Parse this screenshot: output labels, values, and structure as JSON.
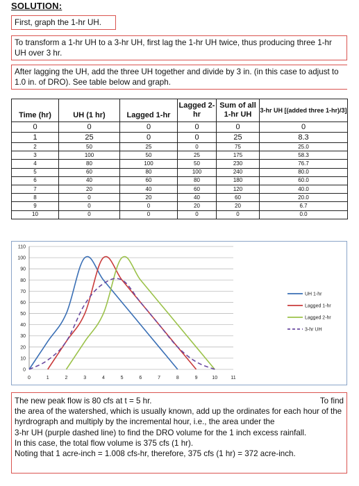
{
  "heading": "SOLUTION:",
  "step1": "First, graph the 1-hr UH.",
  "step2": "To transform a 1-hr UH to a 3-hr UH, first lag the 1-hr UH twice, thus producing three 1-hr UH over 3 hr.",
  "step3": "After lagging the UH, add the three UH together and divide by 3 in. (in this case to adjust to 1.0 in. of DRO). See table below and graph.",
  "table": {
    "headers": [
      "Time (hr)",
      "UH (1 hr)",
      "Lagged 1-hr",
      "Lagged 2-hr",
      "Sum of all 1-hr UH",
      "3-hr UH [(added three 1-hr)/3]"
    ],
    "rows": [
      [
        "0",
        "0",
        "0",
        "0",
        "0",
        "0"
      ],
      [
        "1",
        "25",
        "0",
        "0",
        "25",
        "8.3"
      ],
      [
        "2",
        "50",
        "25",
        "0",
        "75",
        "25.0"
      ],
      [
        "3",
        "100",
        "50",
        "25",
        "175",
        "58.3"
      ],
      [
        "4",
        "80",
        "100",
        "50",
        "230",
        "76.7"
      ],
      [
        "5",
        "60",
        "80",
        "100",
        "240",
        "80.0"
      ],
      [
        "6",
        "40",
        "60",
        "80",
        "180",
        "60.0"
      ],
      [
        "7",
        "20",
        "40",
        "60",
        "120",
        "40.0"
      ],
      [
        "8",
        "0",
        "20",
        "40",
        "60",
        "20.0"
      ],
      [
        "9",
        "0",
        "0",
        "20",
        "20",
        "6.7"
      ],
      [
        "10",
        "0",
        "0",
        "0",
        "0",
        "0.0"
      ]
    ]
  },
  "chart_data": {
    "type": "line",
    "title": "",
    "xlabel": "",
    "ylabel": "",
    "xlim": [
      0,
      11
    ],
    "ylim": [
      0,
      110
    ],
    "xticks": [
      "0",
      "1",
      "2",
      "3",
      "4",
      "5",
      "6",
      "7",
      "8",
      "9",
      "10",
      "11"
    ],
    "yticks": [
      "0",
      "10",
      "20",
      "30",
      "40",
      "50",
      "60",
      "70",
      "80",
      "90",
      "100",
      "110"
    ],
    "grid": true,
    "legend_position": "right",
    "series": [
      {
        "name": "UH 1-hr",
        "color": "#3a6fb5",
        "dash": false,
        "x": [
          0,
          1,
          2,
          3,
          4,
          5,
          6,
          7,
          8
        ],
        "y": [
          0,
          25,
          50,
          100,
          80,
          60,
          40,
          20,
          0
        ]
      },
      {
        "name": "Lagged 1-hr",
        "color": "#c93b3b",
        "dash": false,
        "x": [
          1,
          2,
          3,
          4,
          5,
          6,
          7,
          8,
          9
        ],
        "y": [
          0,
          25,
          50,
          100,
          80,
          60,
          40,
          20,
          0
        ]
      },
      {
        "name": "Lagged 2-hr",
        "color": "#9bc24a",
        "dash": false,
        "x": [
          2,
          3,
          4,
          5,
          6,
          7,
          8,
          9,
          10
        ],
        "y": [
          0,
          25,
          50,
          100,
          80,
          60,
          40,
          20,
          0
        ]
      },
      {
        "name": "3-hr UH",
        "color": "#6a4aa0",
        "dash": true,
        "x": [
          0,
          1,
          2,
          3,
          4,
          5,
          6,
          7,
          8,
          9,
          10
        ],
        "y": [
          0,
          8.3,
          25.0,
          58.3,
          76.7,
          80.0,
          60.0,
          40.0,
          20.0,
          6.7,
          0.0
        ]
      }
    ]
  },
  "note": {
    "line1_left": "The new peak flow is 80 cfs at t = 5 hr.",
    "line1_right": "To find",
    "line2": "the area of the watershed, which is usually known, add up the ordinates for each hour of the hyrdrograph and multiply by the incremental hour, i.e., the area under the",
    "line3": "3-hr UH (purple dashed line) to find the DRO volume for the 1 inch excess rainfall.",
    "line4": "In this case, the total flow volume is 375 cfs (1 hr).",
    "line5": "Noting that 1 acre-inch = 1.008 cfs-hr, therefore, 375 cfs (1 hr) = 372 acre-inch."
  }
}
